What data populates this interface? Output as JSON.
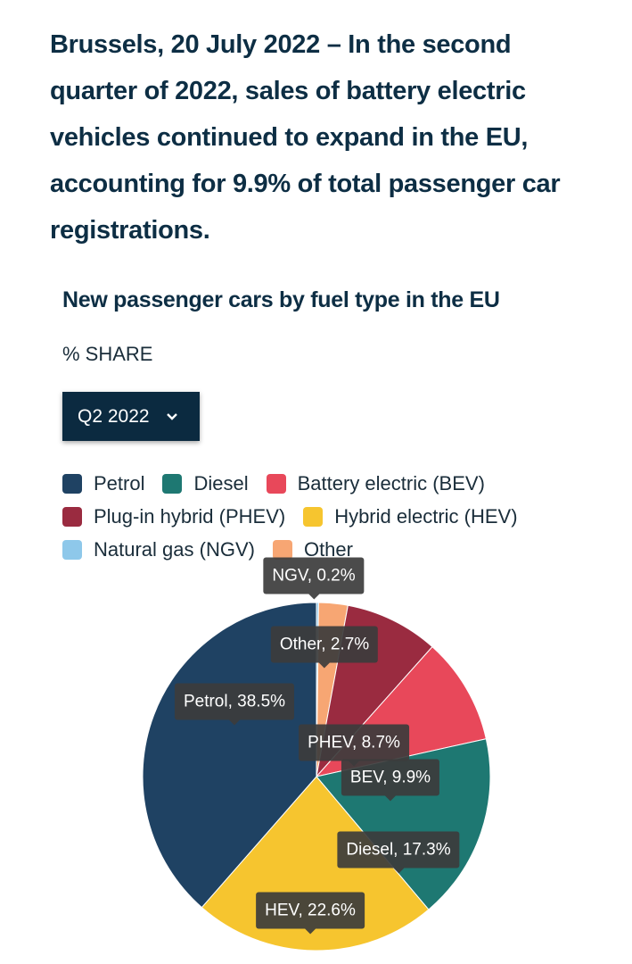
{
  "lead": "Brussels, 20 July 2022 – In the second quarter of 2022, sales of battery electric vehicles continued to expand in the EU, accounting for 9.9% of total passenger car registrations.",
  "chart_data": {
    "type": "pie",
    "title": "New passenger cars by fuel type in the EU",
    "subtitle": "% SHARE",
    "period": "Q2 2022",
    "legend": [
      {
        "name": "Petrol",
        "color": "#1f4263"
      },
      {
        "name": "Diesel",
        "color": "#1e7872"
      },
      {
        "name": "Battery electric (BEV)",
        "color": "#e8485a"
      },
      {
        "name": "Plug-in hybrid (PHEV)",
        "color": "#9a2b40"
      },
      {
        "name": "Hybrid electric (HEV)",
        "color": "#f6c52f"
      },
      {
        "name": "Natural gas (NGV)",
        "color": "#8ec8ea"
      },
      {
        "name": "Other",
        "color": "#f7a673"
      }
    ],
    "slices": [
      {
        "label": "NGV",
        "value": 0.2,
        "color": "#8ec8ea",
        "text": "NGV, 0.2%"
      },
      {
        "label": "Other",
        "value": 2.7,
        "color": "#f7a673",
        "text": "Other, 2.7%"
      },
      {
        "label": "PHEV",
        "value": 8.7,
        "color": "#9a2b40",
        "text": "PHEV, 8.7%"
      },
      {
        "label": "BEV",
        "value": 9.9,
        "color": "#e8485a",
        "text": "BEV, 9.9%"
      },
      {
        "label": "Diesel",
        "value": 17.3,
        "color": "#1e7872",
        "text": "Diesel, 17.3%"
      },
      {
        "label": "HEV",
        "value": 22.6,
        "color": "#f6c52f",
        "text": "HEV, 22.6%"
      },
      {
        "label": "Petrol",
        "value": 38.5,
        "color": "#1f4263",
        "text": "Petrol, 38.5%"
      }
    ]
  }
}
